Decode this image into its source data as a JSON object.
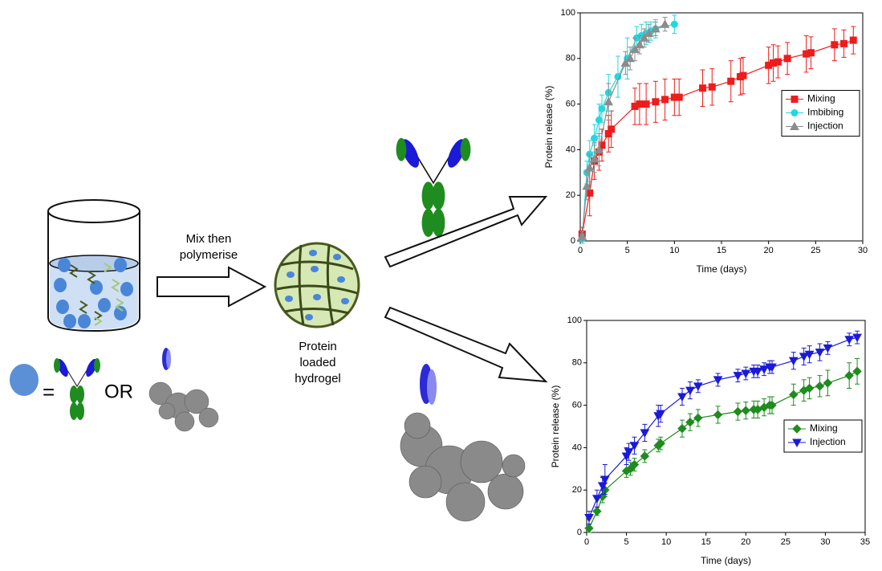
{
  "diagram": {
    "mix_label": [
      "Mix then",
      "polymerise"
    ],
    "hydrogel_label": [
      "Protein",
      "loaded",
      "hydrogel"
    ],
    "equals": "=",
    "or": "OR"
  },
  "chart_data": [
    {
      "type": "line",
      "x_label": "Time (days)",
      "y_label": "Protein release (%)",
      "xlim": [
        0,
        30
      ],
      "ylim": [
        0,
        100
      ],
      "xticks": [
        0,
        5,
        10,
        15,
        20,
        25,
        30
      ],
      "yticks": [
        0,
        20,
        40,
        60,
        80,
        100
      ],
      "legend": "center right",
      "series": [
        {
          "name": "Mixing",
          "color": "#ee1c1c",
          "marker": "square",
          "x": [
            0.2,
            1,
            1.5,
            2,
            2.3,
            3,
            3.3,
            5.8,
            6.3,
            7,
            8,
            9,
            10,
            10.5,
            13,
            14,
            16,
            17,
            17.3,
            20,
            20.5,
            21,
            22,
            24,
            24.5,
            27,
            28,
            29
          ],
          "values": [
            3,
            21,
            35,
            39,
            42,
            47,
            49,
            59,
            60,
            60,
            61,
            62,
            63,
            63,
            67,
            67.5,
            70,
            72,
            72.5,
            77,
            78,
            78.5,
            80,
            82,
            82.5,
            86,
            86.5,
            88
          ],
          "errors": [
            3,
            10,
            8,
            8,
            7,
            8,
            8,
            8,
            9,
            9,
            9,
            9,
            8,
            8,
            8,
            8,
            9,
            8,
            8,
            8,
            8,
            7,
            7,
            8,
            7,
            7,
            6,
            6
          ]
        },
        {
          "name": "Imbibing",
          "color": "#22d8e0",
          "marker": "circle",
          "x": [
            0.2,
            0.7,
            1,
            1.5,
            2,
            2.3,
            3,
            4,
            5,
            6,
            6.5,
            7,
            7.5,
            8,
            10
          ],
          "values": [
            1,
            30,
            38,
            45,
            53,
            58,
            65,
            72,
            80,
            89,
            90,
            91,
            92,
            93,
            95
          ],
          "errors": [
            2,
            5,
            6,
            6,
            7,
            6,
            8,
            9,
            9,
            5,
            5,
            5,
            4,
            4,
            4
          ]
        },
        {
          "name": "Injection",
          "color": "#8c8c8c",
          "marker": "triangle",
          "x": [
            0.2,
            0.7,
            1,
            1.5,
            2,
            3,
            4.8,
            5.3,
            5.8,
            6.3,
            6.8,
            7.3,
            8,
            9
          ],
          "values": [
            2,
            24,
            32,
            36,
            40,
            61,
            78,
            80,
            84,
            86,
            89,
            91,
            93,
            95
          ],
          "errors": [
            2,
            6,
            6,
            6,
            7,
            8,
            5,
            5,
            5,
            4,
            4,
            4,
            3,
            3
          ]
        }
      ]
    },
    {
      "type": "line",
      "x_label": "Time (days)",
      "y_label": "Protein release (%)",
      "xlim": [
        0,
        35
      ],
      "ylim": [
        0,
        100
      ],
      "xticks": [
        0,
        5,
        10,
        15,
        20,
        25,
        30,
        35
      ],
      "yticks": [
        0,
        20,
        40,
        60,
        80,
        100
      ],
      "legend": "lower right",
      "series": [
        {
          "name": "Mixing",
          "color": "#1e8c1e",
          "marker": "diamond",
          "x": [
            0.3,
            1.3,
            2,
            2.3,
            5,
            5.5,
            6,
            7.3,
            9,
            9.3,
            12,
            13,
            14,
            16.5,
            19,
            20,
            21,
            21.5,
            22.3,
            23,
            23.3,
            26,
            27.3,
            28,
            29.3,
            30.3,
            33,
            34
          ],
          "values": [
            2,
            10,
            17,
            20,
            29,
            30,
            32,
            36,
            41,
            42,
            49,
            52,
            54,
            55.5,
            57,
            57.5,
            58,
            58,
            59,
            60,
            60,
            65,
            67,
            68,
            69,
            70.5,
            74,
            76
          ],
          "errors": [
            2,
            2,
            3,
            3,
            3,
            3,
            3,
            3,
            3,
            3,
            4,
            4,
            4,
            4,
            4,
            4,
            4,
            4,
            4,
            4,
            4,
            5,
            5,
            5,
            5,
            6,
            6,
            6
          ]
        },
        {
          "name": "Injection",
          "color": "#1a1ad8",
          "marker": "triangle-down",
          "x": [
            0.3,
            1.3,
            2,
            2.3,
            5,
            5.3,
            6,
            7.3,
            9,
            9.3,
            12,
            13,
            14,
            16.5,
            19,
            20,
            21,
            21.5,
            22.3,
            23,
            23.3,
            26,
            27.3,
            28,
            29.3,
            30.3,
            33,
            34
          ],
          "values": [
            7,
            16,
            22,
            25,
            36,
            38,
            41,
            47,
            55,
            56,
            64,
            67,
            69,
            72,
            74,
            75,
            76,
            76,
            77,
            78,
            78,
            81,
            83,
            84,
            85,
            87,
            91,
            92
          ],
          "errors": [
            3,
            4,
            4,
            7,
            4,
            4,
            4,
            4,
            5,
            4,
            4,
            4,
            3,
            3,
            3,
            3,
            3,
            3,
            3,
            3,
            3,
            4,
            4,
            4,
            4,
            3,
            3,
            3
          ]
        }
      ]
    }
  ]
}
